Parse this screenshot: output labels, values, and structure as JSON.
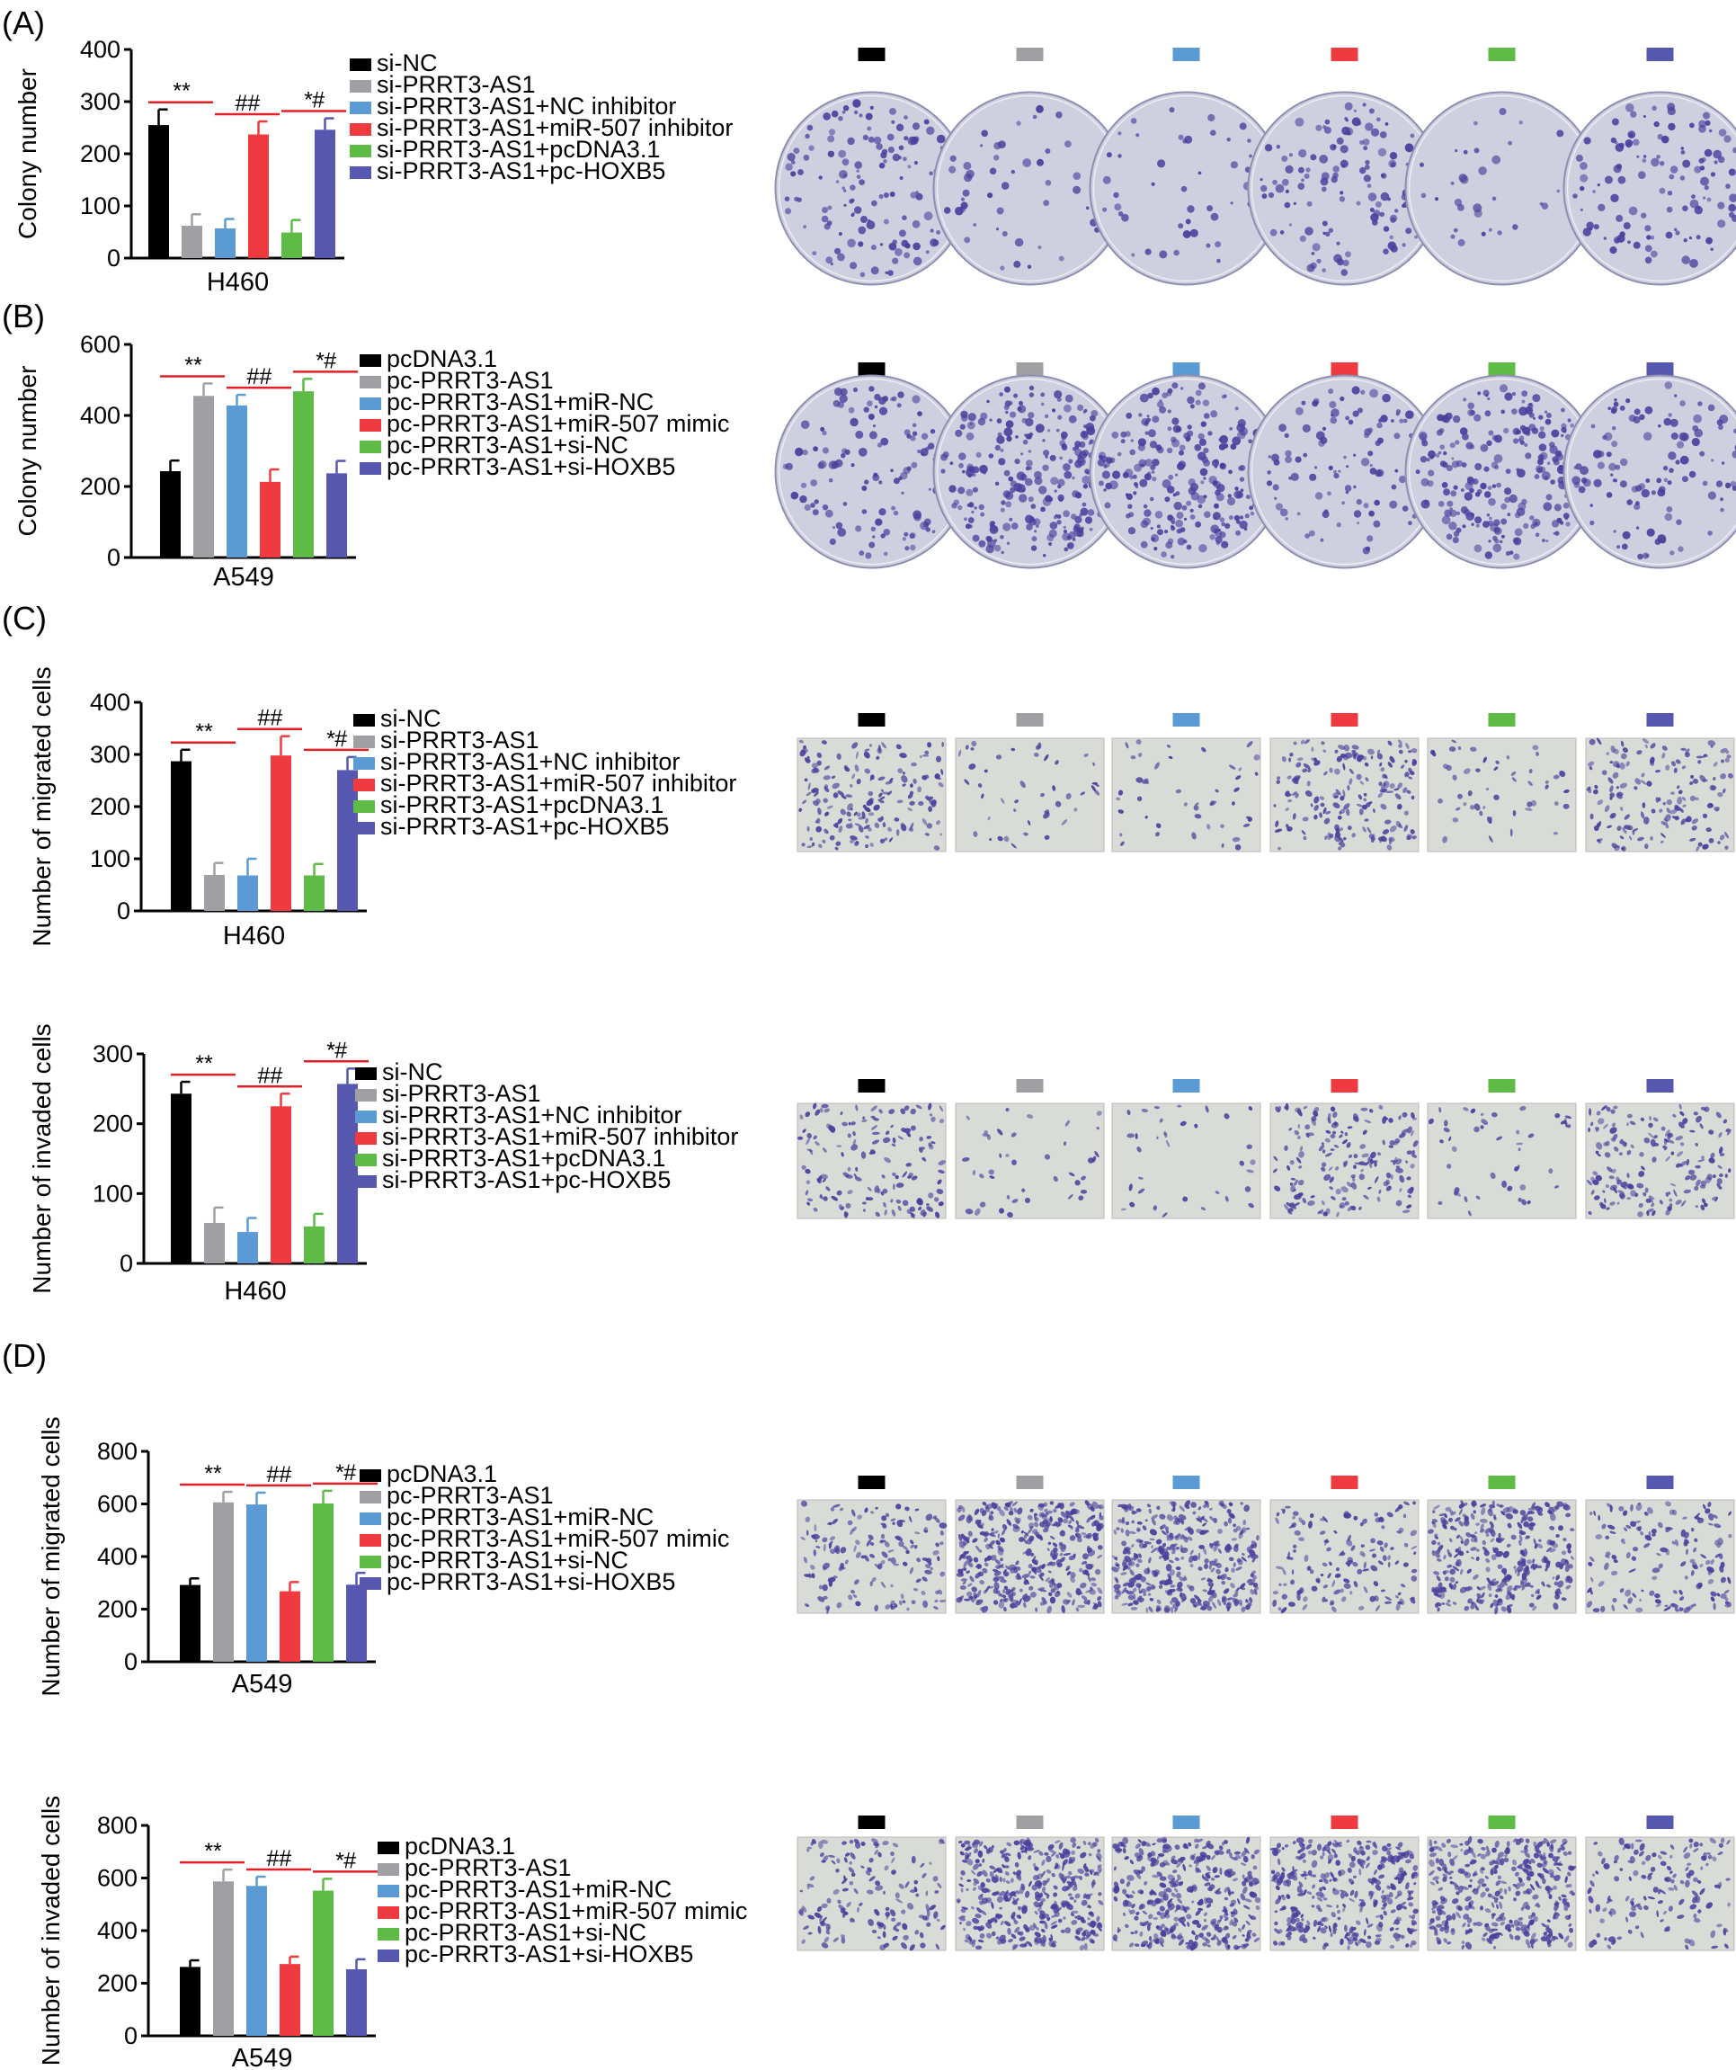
{
  "colors": {
    "black": "#000000",
    "gray": "#a0a0a4",
    "blue": "#5b9bd5",
    "red": "#ef3b3f",
    "green": "#5dbb46",
    "navy": "#5558ae",
    "sig_line": "#e2202a",
    "crystal_violet": "#4a3f9c"
  },
  "chart_data": [
    {
      "id": "A",
      "type": "bar",
      "panel_label": "(A)",
      "ylabel": "Colony number",
      "xlabel": "H460",
      "ylim": [
        0,
        400
      ],
      "yticks": [
        0,
        100,
        200,
        300,
        400
      ],
      "categories": [
        "si-NC",
        "si-PRRT3-AS1",
        "si-PRRT3-AS1+NC inhibitor",
        "si-PRRT3-AS1+miR-507 inhibitor",
        "si-PRRT3-AS1+pcDNA3.1",
        "si-PRRT3-AS1+pc-HOXB5"
      ],
      "values": [
        255,
        62,
        57,
        237,
        49,
        246
      ],
      "errors": [
        30,
        22,
        18,
        25,
        24,
        22
      ],
      "significance": [
        {
          "from": 0,
          "to": 1,
          "label": "**"
        },
        {
          "from": 2,
          "to": 3,
          "label": "##"
        },
        {
          "from": 4,
          "to": 5,
          "label": "*#"
        }
      ],
      "image_style": "plate"
    },
    {
      "id": "B",
      "type": "bar",
      "panel_label": "(B)",
      "ylabel": "Colony number",
      "xlabel": "A549",
      "ylim": [
        0,
        600
      ],
      "yticks": [
        0,
        200,
        400,
        600
      ],
      "categories": [
        "pcDNA3.1",
        "pc-PRRT3-AS1",
        "pc-PRRT3-AS1+miR-NC",
        "pc-PRRT3-AS1+miR-507 mimic",
        "pc-PRRT3-AS1+si-NC",
        "pc-PRRT3-AS1+si-HOXB5"
      ],
      "values": [
        243,
        455,
        428,
        213,
        468,
        237
      ],
      "errors": [
        30,
        35,
        30,
        35,
        35,
        35
      ],
      "significance": [
        {
          "from": 0,
          "to": 1,
          "label": "**"
        },
        {
          "from": 2,
          "to": 3,
          "label": "##"
        },
        {
          "from": 4,
          "to": 5,
          "label": "*#"
        }
      ],
      "image_style": "plate"
    },
    {
      "id": "C1",
      "type": "bar",
      "panel_label": "(C)",
      "ylabel": "Number of migrated cells",
      "xlabel": "H460",
      "ylim": [
        0,
        400
      ],
      "yticks": [
        0,
        100,
        200,
        300,
        400
      ],
      "categories": [
        "si-NC",
        "si-PRRT3-AS1",
        "si-PRRT3-AS1+NC inhibitor",
        "si-PRRT3-AS1+miR-507 inhibitor",
        "si-PRRT3-AS1+pcDNA3.1",
        "si-PRRT3-AS1+pc-HOXB5"
      ],
      "values": [
        287,
        69,
        68,
        298,
        68,
        270
      ],
      "errors": [
        22,
        23,
        32,
        37,
        22,
        25
      ],
      "significance": [
        {
          "from": 0,
          "to": 1,
          "label": "**"
        },
        {
          "from": 2,
          "to": 3,
          "label": "##"
        },
        {
          "from": 4,
          "to": 5,
          "label": "*#"
        }
      ],
      "image_style": "field"
    },
    {
      "id": "C2",
      "type": "bar",
      "panel_label": "",
      "ylabel": "Number of invaded cells",
      "xlabel": "H460",
      "ylim": [
        0,
        300
      ],
      "yticks": [
        0,
        100,
        200,
        300
      ],
      "categories": [
        "si-NC",
        "si-PRRT3-AS1",
        "si-PRRT3-AS1+NC inhibitor",
        "si-PRRT3-AS1+miR-507 inhibitor",
        "si-PRRT3-AS1+pcDNA3.1",
        "si-PRRT3-AS1+pc-HOXB5"
      ],
      "values": [
        243,
        58,
        45,
        225,
        53,
        257
      ],
      "errors": [
        17,
        22,
        20,
        18,
        18,
        22
      ],
      "significance": [
        {
          "from": 0,
          "to": 1,
          "label": "**"
        },
        {
          "from": 2,
          "to": 3,
          "label": "##"
        },
        {
          "from": 4,
          "to": 5,
          "label": "*#"
        }
      ],
      "image_style": "field"
    },
    {
      "id": "D1",
      "type": "bar",
      "panel_label": "(D)",
      "ylabel": "Number of migrated cells",
      "xlabel": "A549",
      "ylim": [
        0,
        800
      ],
      "yticks": [
        0,
        200,
        400,
        600,
        800
      ],
      "categories": [
        "pcDNA3.1",
        "pc-PRRT3-AS1",
        "pc-PRRT3-AS1+miR-NC",
        "pc-PRRT3-AS1+miR-507 mimic",
        "pc-PRRT3-AS1+si-NC",
        "pc-PRRT3-AS1+si-HOXB5"
      ],
      "values": [
        292,
        606,
        598,
        268,
        602,
        293
      ],
      "errors": [
        25,
        40,
        45,
        35,
        48,
        45
      ],
      "significance": [
        {
          "from": 0,
          "to": 1,
          "label": "**"
        },
        {
          "from": 2,
          "to": 3,
          "label": "##"
        },
        {
          "from": 4,
          "to": 5,
          "label": "*#"
        }
      ],
      "image_style": "field"
    },
    {
      "id": "D2",
      "type": "bar",
      "panel_label": "",
      "ylabel": "Number of invaded cells",
      "xlabel": "A549",
      "ylim": [
        0,
        800
      ],
      "yticks": [
        0,
        200,
        400,
        600,
        800
      ],
      "categories": [
        "pcDNA3.1",
        "pc-PRRT3-AS1",
        "pc-PRRT3-AS1+miR-NC",
        "pc-PRRT3-AS1+miR-507 mimic",
        "pc-PRRT3-AS1+si-NC",
        "pc-PRRT3-AS1+si-HOXB5"
      ],
      "values": [
        262,
        587,
        570,
        273,
        552,
        253
      ],
      "errors": [
        25,
        45,
        35,
        28,
        45,
        38
      ],
      "significance": [
        {
          "from": 0,
          "to": 1,
          "label": "**"
        },
        {
          "from": 2,
          "to": 3,
          "label": "##"
        },
        {
          "from": 4,
          "to": 5,
          "label": "*#"
        }
      ],
      "image_style": "field"
    }
  ]
}
